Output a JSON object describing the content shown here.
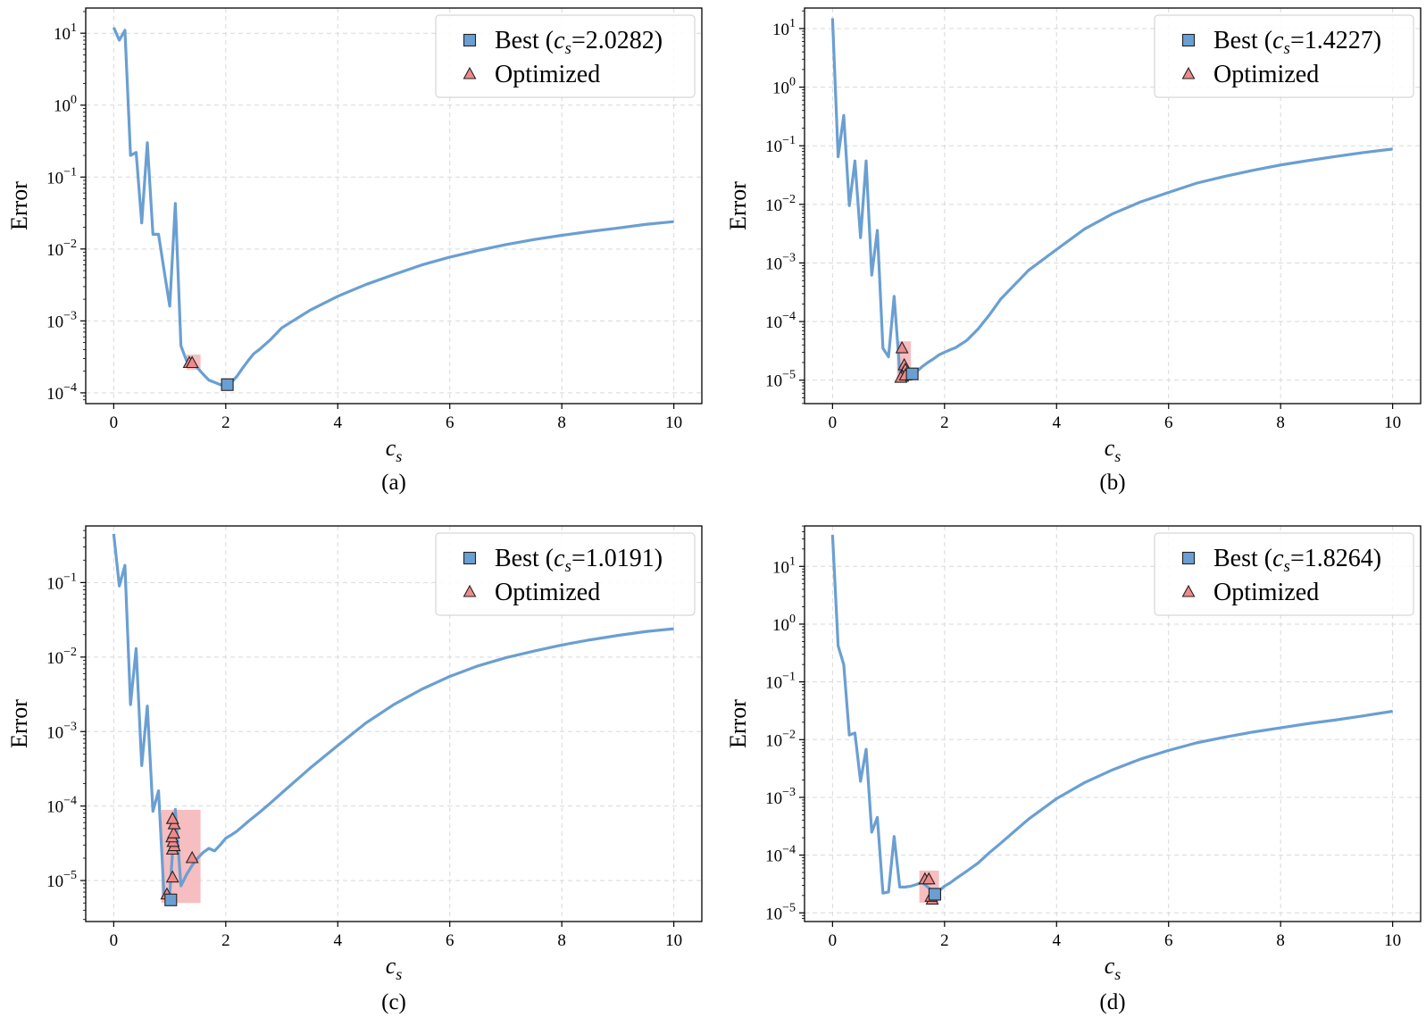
{
  "chart_data": [
    {
      "type": "line",
      "caption": "(a)",
      "xlabel": "c",
      "xlabel_sub": "s",
      "ylabel": "Error",
      "xscale": "linear",
      "yscale": "log",
      "xlim": [
        -0.5,
        10.5
      ],
      "ylim_exp": [
        -4.15,
        1.35
      ],
      "xticks": [
        "0",
        "2",
        "4",
        "6",
        "8",
        "10"
      ],
      "yticks": [
        {
          "base": "10",
          "exp": "1"
        },
        {
          "base": "10",
          "exp": "0"
        },
        {
          "base": "10",
          "exp": "−1"
        },
        {
          "base": "10",
          "exp": "−2"
        },
        {
          "base": "10",
          "exp": "−3"
        },
        {
          "base": "10",
          "exp": "−4"
        }
      ],
      "grid": true,
      "legend_position": "top-right",
      "legend": [
        {
          "marker": "square",
          "label_prefix": "Best (",
          "label_var": "c",
          "label_sub": "s",
          "label_suffix": "=2.0282)"
        },
        {
          "marker": "triangle",
          "label": "Optimized"
        }
      ],
      "curve_x": [
        0,
        0.1,
        0.2,
        0.3,
        0.4,
        0.5,
        0.6,
        0.7,
        0.8,
        0.9,
        1.0,
        1.1,
        1.2,
        1.3,
        1.4,
        1.5,
        1.6,
        1.7,
        1.8,
        1.9,
        2.0,
        2.1,
        2.2,
        2.3,
        2.4,
        2.5,
        2.6,
        2.8,
        3.0,
        3.5,
        4.0,
        4.5,
        5.0,
        5.5,
        6.0,
        6.5,
        7.0,
        7.5,
        8.0,
        8.5,
        9.0,
        9.5,
        10.0
      ],
      "curve_y": [
        12,
        8,
        11,
        0.2,
        0.22,
        0.023,
        0.3,
        0.016,
        0.016,
        0.005,
        0.0016,
        0.043,
        0.00045,
        0.00028,
        0.00026,
        0.00022,
        0.00018,
        0.00015,
        0.00014,
        0.00013,
        0.00013,
        0.00014,
        0.00017,
        0.00022,
        0.00028,
        0.00035,
        0.0004,
        0.00055,
        0.0008,
        0.0014,
        0.0022,
        0.0032,
        0.0044,
        0.006,
        0.0077,
        0.0095,
        0.0115,
        0.0135,
        0.0155,
        0.0175,
        0.0195,
        0.022,
        0.024
      ],
      "best": {
        "x": 2.0282,
        "y": 0.00013
      },
      "optimized_x": [
        1.35,
        1.4
      ],
      "optimized_y": [
        0.00026,
        0.00026
      ],
      "region_x": [
        1.3,
        1.55
      ],
      "region_y": [
        0.00021,
        0.00034
      ]
    },
    {
      "type": "line",
      "caption": "(b)",
      "xlabel": "c",
      "xlabel_sub": "s",
      "ylabel": "Error",
      "xscale": "linear",
      "yscale": "log",
      "xlim": [
        -0.5,
        10.5
      ],
      "ylim_exp": [
        -5.4,
        1.35
      ],
      "xticks": [
        "0",
        "2",
        "4",
        "6",
        "8",
        "10"
      ],
      "yticks": [
        {
          "base": "10",
          "exp": "1"
        },
        {
          "base": "10",
          "exp": "0"
        },
        {
          "base": "10",
          "exp": "−1"
        },
        {
          "base": "10",
          "exp": "−2"
        },
        {
          "base": "10",
          "exp": "−3"
        },
        {
          "base": "10",
          "exp": "−4"
        },
        {
          "base": "10",
          "exp": "−5"
        }
      ],
      "grid": true,
      "legend_position": "top-right",
      "legend": [
        {
          "marker": "square",
          "label_prefix": "Best (",
          "label_var": "c",
          "label_sub": "s",
          "label_suffix": "=1.4227)"
        },
        {
          "marker": "triangle",
          "label": "Optimized"
        }
      ],
      "curve_x": [
        0,
        0.1,
        0.2,
        0.3,
        0.4,
        0.5,
        0.6,
        0.7,
        0.8,
        0.9,
        1.0,
        1.1,
        1.2,
        1.3,
        1.4,
        1.5,
        1.6,
        1.7,
        1.8,
        1.9,
        2.0,
        2.1,
        2.2,
        2.4,
        2.6,
        2.8,
        3.0,
        3.5,
        4.0,
        4.5,
        5.0,
        5.5,
        6.0,
        6.5,
        7.0,
        7.5,
        8.0,
        8.5,
        9.0,
        9.5,
        10.0
      ],
      "curve_y": [
        15,
        0.065,
        0.33,
        0.0095,
        0.055,
        0.0027,
        0.055,
        0.00062,
        0.0036,
        3.5e-05,
        2.5e-05,
        0.00027,
        1.4e-05,
        1.2e-05,
        1.3e-05,
        1.4e-05,
        1.7e-05,
        2e-05,
        2.3e-05,
        2.7e-05,
        3e-05,
        3.3e-05,
        3.6e-05,
        4.8e-05,
        7.5e-05,
        0.00013,
        0.00024,
        0.00075,
        0.0017,
        0.0038,
        0.0069,
        0.011,
        0.016,
        0.023,
        0.03,
        0.038,
        0.047,
        0.056,
        0.066,
        0.077,
        0.088
      ],
      "best": {
        "x": 1.4227,
        "y": 1.28e-05
      },
      "optimized_x": [
        1.24,
        1.28,
        1.26,
        1.3,
        1.25,
        1.22,
        1.3
      ],
      "optimized_y": [
        3.5e-05,
        1.8e-05,
        1.3e-05,
        1.5e-05,
        1.15e-05,
        1.1e-05,
        1.2e-05
      ],
      "region_x": [
        1.15,
        1.4
      ],
      "region_y": [
        1.05e-05,
        4.6e-05
      ]
    },
    {
      "type": "line",
      "caption": "(c)",
      "xlabel": "c",
      "xlabel_sub": "s",
      "ylabel": "Error",
      "xscale": "linear",
      "yscale": "log",
      "xlim": [
        -0.5,
        10.5
      ],
      "ylim_exp": [
        -5.55,
        -0.24
      ],
      "xticks": [
        "0",
        "2",
        "4",
        "6",
        "8",
        "10"
      ],
      "yticks": [
        {
          "base": "10",
          "exp": "−1"
        },
        {
          "base": "10",
          "exp": "−2"
        },
        {
          "base": "10",
          "exp": "−3"
        },
        {
          "base": "10",
          "exp": "−4"
        },
        {
          "base": "10",
          "exp": "−5"
        }
      ],
      "grid": true,
      "legend_position": "top-right",
      "legend": [
        {
          "marker": "square",
          "label_prefix": "Best (",
          "label_var": "c",
          "label_sub": "s",
          "label_suffix": "=1.0191)"
        },
        {
          "marker": "triangle",
          "label": "Optimized"
        }
      ],
      "curve_x": [
        0,
        0.1,
        0.2,
        0.3,
        0.4,
        0.5,
        0.6,
        0.7,
        0.8,
        0.9,
        1.0,
        1.1,
        1.2,
        1.3,
        1.4,
        1.5,
        1.6,
        1.7,
        1.8,
        1.9,
        2.0,
        2.1,
        2.2,
        2.4,
        2.6,
        2.8,
        3.0,
        3.5,
        4.0,
        4.5,
        5.0,
        5.5,
        6.0,
        6.5,
        7.0,
        7.5,
        8.0,
        8.5,
        9.0,
        9.5,
        10.0
      ],
      "curve_y": [
        0.45,
        0.09,
        0.17,
        0.0023,
        0.013,
        0.00035,
        0.0022,
        8.5e-05,
        0.00016,
        6e-06,
        6.5e-06,
        9e-05,
        8.5e-06,
        1.2e-05,
        1.6e-05,
        2e-05,
        2.4e-05,
        2.7e-05,
        2.5e-05,
        3e-05,
        3.7e-05,
        4.1e-05,
        4.6e-05,
        6.2e-05,
        8.2e-05,
        0.00011,
        0.00015,
        0.00032,
        0.00065,
        0.0013,
        0.0023,
        0.0037,
        0.0055,
        0.0076,
        0.0098,
        0.012,
        0.0145,
        0.017,
        0.0195,
        0.022,
        0.024
      ],
      "best": {
        "x": 1.0191,
        "y": 5.5e-06
      },
      "optimized_x": [
        0.95,
        1.05,
        1.05,
        1.08,
        1.06,
        1.04,
        1.07,
        1.08,
        1.05,
        1.4
      ],
      "optimized_y": [
        6.5e-06,
        1.1e-05,
        2.6e-05,
        2.9e-05,
        3.3e-05,
        3.8e-05,
        4.3e-05,
        5.7e-05,
        6.7e-05,
        2e-05
      ],
      "region_x": [
        0.85,
        1.55
      ],
      "region_y": [
        5e-06,
        8.9e-05
      ]
    },
    {
      "type": "line",
      "caption": "(d)",
      "xlabel": "c",
      "xlabel_sub": "s",
      "ylabel": "Error",
      "xscale": "linear",
      "yscale": "log",
      "xlim": [
        -0.5,
        10.5
      ],
      "ylim_exp": [
        -5.15,
        1.7
      ],
      "xticks": [
        "0",
        "2",
        "4",
        "6",
        "8",
        "10"
      ],
      "yticks": [
        {
          "base": "10",
          "exp": "1"
        },
        {
          "base": "10",
          "exp": "0"
        },
        {
          "base": "10",
          "exp": "−1"
        },
        {
          "base": "10",
          "exp": "−2"
        },
        {
          "base": "10",
          "exp": "−3"
        },
        {
          "base": "10",
          "exp": "−4"
        },
        {
          "base": "10",
          "exp": "−5"
        }
      ],
      "grid": true,
      "legend_position": "top-right",
      "legend": [
        {
          "marker": "square",
          "label_prefix": "Best (",
          "label_var": "c",
          "label_sub": "s",
          "label_suffix": "=1.8264)"
        },
        {
          "marker": "triangle",
          "label": "Optimized"
        }
      ],
      "curve_x": [
        0,
        0.1,
        0.2,
        0.3,
        0.4,
        0.5,
        0.6,
        0.7,
        0.8,
        0.9,
        1.0,
        1.1,
        1.2,
        1.3,
        1.4,
        1.5,
        1.6,
        1.7,
        1.8,
        1.9,
        2.0,
        2.1,
        2.2,
        2.4,
        2.6,
        2.8,
        3.0,
        3.5,
        4.0,
        4.5,
        5.0,
        5.5,
        6.0,
        6.5,
        7.0,
        7.5,
        8.0,
        8.5,
        9.0,
        9.5,
        10.0
      ],
      "curve_y": [
        35,
        0.42,
        0.2,
        0.012,
        0.013,
        0.0019,
        0.0068,
        0.00025,
        0.00045,
        2.2e-05,
        2.3e-05,
        0.00021,
        2.8e-05,
        2.8e-05,
        2.9e-05,
        3.1e-05,
        3.4e-05,
        2.8e-05,
        2.3e-05,
        2.4e-05,
        2.9e-05,
        3.3e-05,
        3.9e-05,
        5.3e-05,
        7.3e-05,
        0.00011,
        0.00016,
        0.00042,
        0.00095,
        0.0018,
        0.003,
        0.0046,
        0.0065,
        0.0088,
        0.011,
        0.0135,
        0.016,
        0.019,
        0.022,
        0.026,
        0.031
      ],
      "best": {
        "x": 1.8264,
        "y": 2.1e-05
      },
      "optimized_x": [
        1.65,
        1.72,
        1.78,
        1.76
      ],
      "optimized_y": [
        3.8e-05,
        3.8e-05,
        1.7e-05,
        1.9e-05
      ],
      "region_x": [
        1.55,
        1.9
      ],
      "region_y": [
        1.5e-05,
        5.4e-05
      ]
    }
  ],
  "colors": {
    "curve": "#6a9fd2",
    "best_marker": "#6a9fd2",
    "optimized_marker": "#ee8a8a",
    "region": "#f5b7b9",
    "grid": "#d9d9d9",
    "axis": "#000000"
  }
}
